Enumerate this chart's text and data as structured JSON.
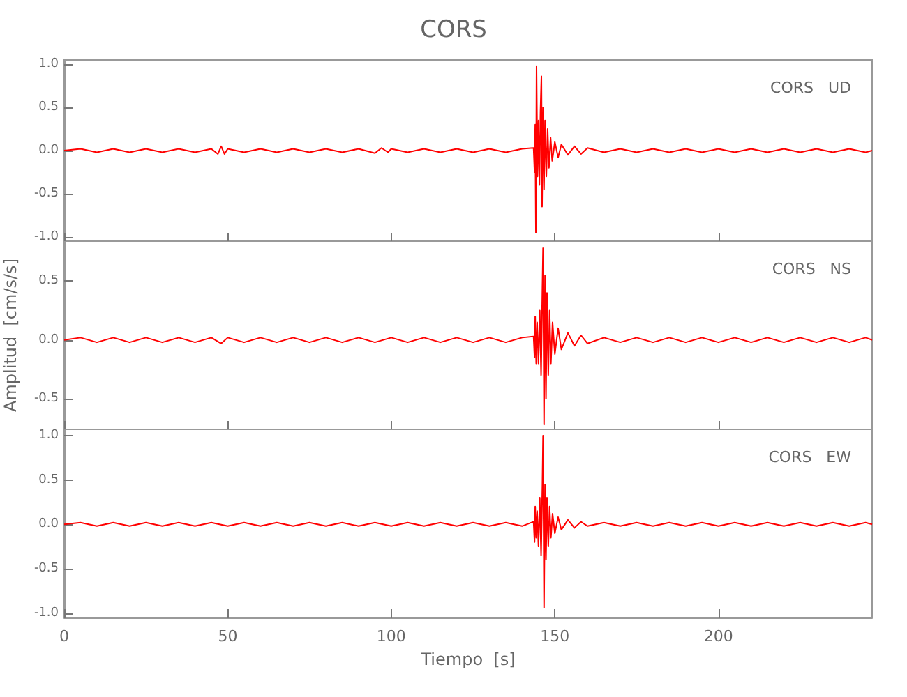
{
  "chart_data": [
    {
      "type": "line",
      "title": "CORS",
      "ylim": [
        -1.05,
        1.05
      ],
      "yticks": [
        {
          "value": -1,
          "label": "-1.0"
        },
        {
          "value": -0.5,
          "label": "-0.5"
        },
        {
          "value": 0,
          "label": "0.0"
        },
        {
          "value": 0.5,
          "label": "0.5"
        },
        {
          "value": 1,
          "label": "1.0"
        }
      ],
      "xlim": [
        0,
        247
      ],
      "xticks": [
        0,
        50,
        100,
        150,
        200
      ],
      "tick_labels": "y",
      "grid": false,
      "legend": "top right",
      "marker": "none",
      "line_style": "solid",
      "series": [
        {
          "name": "CORS   UD",
          "color": "#ff0000",
          "x": [
            0,
            5,
            10,
            15,
            20,
            25,
            30,
            35,
            40,
            45,
            47,
            48,
            49,
            50,
            55,
            60,
            65,
            70,
            75,
            80,
            85,
            90,
            95,
            97,
            99,
            100,
            105,
            110,
            115,
            120,
            125,
            130,
            135,
            140,
            143.5,
            143.8,
            144,
            144.2,
            144.4,
            144.7,
            145,
            145.3,
            145.6,
            145.9,
            146.1,
            146.4,
            146.7,
            147,
            147.4,
            147.8,
            148.2,
            148.7,
            149.2,
            150,
            151,
            152,
            154,
            156,
            158,
            160,
            165,
            170,
            175,
            180,
            185,
            190,
            195,
            200,
            205,
            210,
            215,
            220,
            225,
            230,
            235,
            240,
            245,
            247
          ],
          "values": [
            0,
            0.02,
            -0.02,
            0.02,
            -0.02,
            0.02,
            -0.02,
            0.02,
            -0.02,
            0.02,
            -0.04,
            0.05,
            -0.04,
            0.02,
            -0.02,
            0.02,
            -0.02,
            0.02,
            -0.02,
            0.02,
            -0.02,
            0.02,
            -0.03,
            0.03,
            -0.02,
            0.02,
            -0.02,
            0.02,
            -0.02,
            0.02,
            -0.02,
            0.02,
            -0.02,
            0.02,
            0.03,
            -0.25,
            0.3,
            -0.95,
            0.98,
            -0.3,
            0.35,
            -0.4,
            0.45,
            0.86,
            -0.65,
            0.5,
            -0.45,
            0.35,
            -0.3,
            0.25,
            -0.2,
            0.15,
            -0.12,
            0.1,
            -0.08,
            0.07,
            -0.05,
            0.05,
            -0.04,
            0.03,
            -0.02,
            0.02,
            -0.02,
            0.02,
            -0.02,
            0.02,
            -0.02,
            0.02,
            -0.02,
            0.02,
            -0.02,
            0.02,
            -0.02,
            0.02,
            -0.02,
            0.02,
            -0.02,
            0
          ]
        }
      ]
    },
    {
      "type": "line",
      "ylabel": "Amplitud  [cm/s/s]",
      "ylim": [
        -0.76,
        0.84
      ],
      "yticks": [
        {
          "value": -0.5,
          "label": "-0.5"
        },
        {
          "value": 0,
          "label": "0.0"
        },
        {
          "value": 0.5,
          "label": "0.5"
        }
      ],
      "xlim": [
        0,
        247
      ],
      "xticks": [
        0,
        50,
        100,
        150,
        200
      ],
      "tick_labels": "y",
      "grid": false,
      "legend": "top right",
      "marker": "none",
      "line_style": "solid",
      "series": [
        {
          "name": "CORS   NS",
          "color": "#ff0000",
          "x": [
            0,
            5,
            10,
            15,
            20,
            25,
            30,
            35,
            40,
            45,
            48,
            50,
            55,
            60,
            65,
            70,
            75,
            80,
            85,
            90,
            95,
            100,
            105,
            110,
            115,
            120,
            125,
            130,
            135,
            140,
            143.5,
            143.8,
            144,
            144.3,
            144.6,
            145,
            145.4,
            145.8,
            146.2,
            146.4,
            146.7,
            147,
            147.3,
            147.6,
            148,
            148.4,
            148.8,
            149.3,
            150,
            151,
            152,
            154,
            156,
            158,
            160,
            165,
            170,
            175,
            180,
            185,
            190,
            195,
            200,
            205,
            210,
            215,
            220,
            225,
            230,
            235,
            240,
            245,
            247
          ],
          "values": [
            0,
            0.02,
            -0.02,
            0.02,
            -0.02,
            0.02,
            -0.02,
            0.02,
            -0.02,
            0.02,
            -0.03,
            0.02,
            -0.02,
            0.02,
            -0.02,
            0.02,
            -0.02,
            0.02,
            -0.02,
            0.02,
            -0.02,
            0.02,
            -0.02,
            0.02,
            -0.02,
            0.02,
            -0.02,
            0.02,
            -0.02,
            0.02,
            0.03,
            -0.15,
            0.2,
            -0.2,
            0.15,
            -0.2,
            0.25,
            -0.3,
            0.45,
            0.78,
            -0.72,
            0.55,
            -0.5,
            0.4,
            -0.3,
            0.25,
            -0.2,
            0.15,
            -0.12,
            0.1,
            -0.08,
            0.06,
            -0.05,
            0.04,
            -0.03,
            0.02,
            -0.02,
            0.02,
            -0.02,
            0.02,
            -0.02,
            0.02,
            -0.02,
            0.02,
            -0.02,
            0.02,
            -0.02,
            0.02,
            -0.02,
            0.02,
            -0.02,
            0.02,
            0
          ]
        }
      ]
    },
    {
      "type": "line",
      "xlabel": "Tiempo  [s]",
      "ylim": [
        -1.05,
        1.07
      ],
      "yticks": [
        {
          "value": -1,
          "label": "-1.0"
        },
        {
          "value": -0.5,
          "label": "-0.5"
        },
        {
          "value": 0,
          "label": "0.0"
        },
        {
          "value": 0.5,
          "label": "0.5"
        },
        {
          "value": 1,
          "label": "1.0"
        }
      ],
      "xlim": [
        0,
        247
      ],
      "xticks": [
        0,
        50,
        100,
        150,
        200
      ],
      "grid": false,
      "legend": "top right",
      "marker": "none",
      "line_style": "solid",
      "series": [
        {
          "name": "CORS   EW",
          "color": "#ff0000",
          "x": [
            0,
            5,
            10,
            15,
            20,
            25,
            30,
            35,
            40,
            45,
            50,
            55,
            60,
            65,
            70,
            75,
            80,
            85,
            90,
            95,
            100,
            105,
            110,
            115,
            120,
            125,
            130,
            135,
            140,
            143.5,
            143.8,
            144,
            144.3,
            144.6,
            145,
            145.4,
            145.8,
            146.2,
            146.4,
            146.7,
            147,
            147.3,
            147.6,
            148,
            148.4,
            148.8,
            149.3,
            150,
            151,
            152,
            154,
            156,
            158,
            160,
            165,
            170,
            175,
            180,
            185,
            190,
            195,
            200,
            205,
            210,
            215,
            220,
            225,
            230,
            235,
            240,
            245,
            247
          ],
          "values": [
            0,
            0.02,
            -0.02,
            0.02,
            -0.02,
            0.02,
            -0.02,
            0.02,
            -0.02,
            0.02,
            -0.02,
            0.02,
            -0.02,
            0.02,
            -0.02,
            0.02,
            -0.02,
            0.02,
            -0.02,
            0.02,
            -0.02,
            0.02,
            -0.02,
            0.02,
            -0.02,
            0.02,
            -0.02,
            0.02,
            -0.02,
            0.03,
            -0.2,
            0.2,
            -0.15,
            0.15,
            -0.25,
            0.3,
            -0.35,
            0.45,
            1.0,
            -0.94,
            0.45,
            -0.4,
            0.3,
            -0.25,
            0.2,
            -0.15,
            0.12,
            -0.1,
            0.08,
            -0.06,
            0.05,
            -0.04,
            0.03,
            -0.02,
            0.02,
            -0.02,
            0.02,
            -0.02,
            0.02,
            -0.02,
            0.02,
            -0.02,
            0.02,
            -0.02,
            0.02,
            -0.02,
            0.02,
            -0.02,
            0.02,
            -0.02,
            0.02,
            0
          ]
        }
      ]
    }
  ]
}
